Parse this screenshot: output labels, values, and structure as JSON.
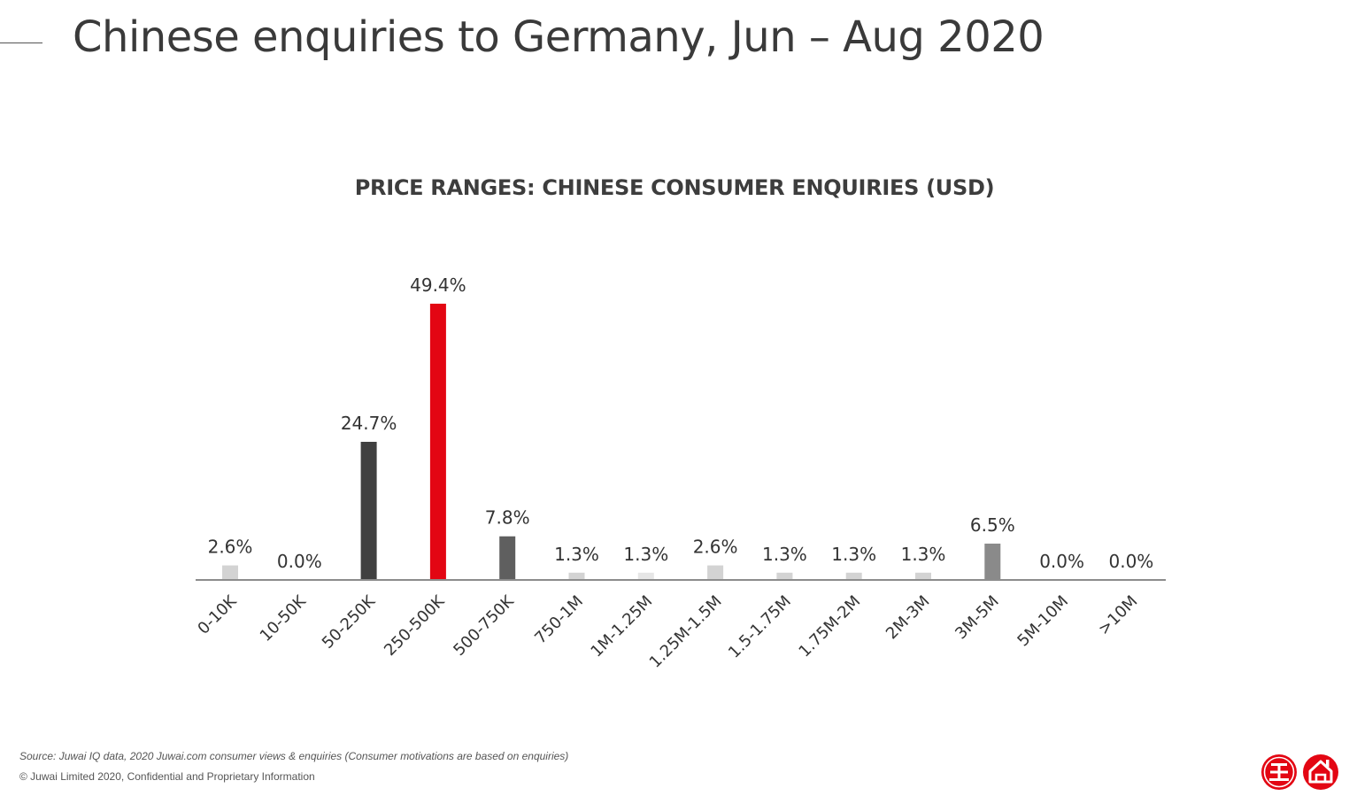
{
  "header": {
    "title": "Chinese enquiries to Germany, Jun – Aug 2020"
  },
  "chart_data": {
    "type": "bar",
    "title": "PRICE RANGES: CHINESE CONSUMER ENQUIRIES (USD)",
    "xlabel": "",
    "ylabel": "",
    "ylim": [
      0,
      49.4
    ],
    "grid": false,
    "legend": "none",
    "categories": [
      "0-10K",
      "10-50K",
      "50-250K",
      "250-500K",
      "500-750K",
      "750-1M",
      "1M-1.25M",
      "1.25M-1.5M",
      "1.5-1.75M",
      "1.75M-2M",
      "2M-3M",
      "3M-5M",
      "5M-10M",
      ">10M"
    ],
    "values": [
      2.6,
      0.0,
      24.7,
      49.4,
      7.8,
      1.3,
      1.3,
      2.6,
      1.3,
      1.3,
      1.3,
      6.5,
      0.0,
      0.0
    ],
    "data_labels": [
      "2.6%",
      "0.0%",
      "24.7%",
      "49.4%",
      "7.8%",
      "1.3%",
      "1.3%",
      "2.6%",
      "1.3%",
      "1.3%",
      "1.3%",
      "6.5%",
      "0.0%",
      "0.0%"
    ],
    "colors": [
      "#d3d3d3",
      "#d3d3d3",
      "#404040",
      "#e30613",
      "#5f5f5f",
      "#d3d3d3",
      "#e6e6e6",
      "#d3d3d3",
      "#d3d3d3",
      "#d3d3d3",
      "#d3d3d3",
      "#8a8a8a",
      "#d3d3d3",
      "#d3d3d3"
    ],
    "axis_color": "#8c8c8c"
  },
  "footer": {
    "source": "Source: Juwai IQ data, 2020 Juwai.com consumer views & enquiries (Consumer motivations are based on enquiries)",
    "copyright": "© Juwai Limited 2020, Confidential and Proprietary Information"
  },
  "brand": {
    "accent": "#e30613",
    "logo_icons": [
      "juwai-seal-icon",
      "house-icon"
    ]
  }
}
